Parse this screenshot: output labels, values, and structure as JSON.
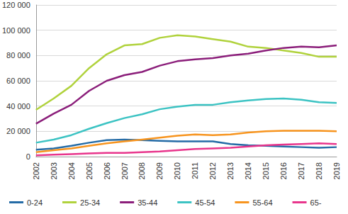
{
  "chart_data": {
    "type": "line",
    "categories": [
      "2002",
      "2003",
      "2004",
      "2005",
      "2006",
      "2007",
      "2008",
      "2009",
      "2010",
      "2011",
      "2012",
      "2013",
      "2014",
      "2015",
      "2016",
      "2017",
      "2018",
      "2019"
    ],
    "series": [
      {
        "name": "0-24",
        "color": "#246ba6",
        "values": [
          5500,
          6500,
          8500,
          11000,
          13000,
          13500,
          13000,
          12500,
          12000,
          12000,
          12000,
          10000,
          9000,
          8500,
          8000,
          7500,
          7000,
          7500
        ]
      },
      {
        "name": "25-34",
        "color": "#b0d23c",
        "values": [
          37000,
          46000,
          56000,
          70000,
          81000,
          88000,
          89000,
          94000,
          96000,
          95000,
          93000,
          91000,
          87000,
          86000,
          84000,
          82000,
          79000,
          79000
        ]
      },
      {
        "name": "35-44",
        "color": "#8b1e7a",
        "values": [
          26000,
          34000,
          41000,
          52000,
          60000,
          64500,
          67000,
          72000,
          75500,
          77000,
          78000,
          80000,
          81500,
          84000,
          86000,
          87000,
          86500,
          88000
        ]
      },
      {
        "name": "45-54",
        "color": "#3cc3c3",
        "values": [
          11000,
          13500,
          17000,
          22000,
          26500,
          30500,
          33500,
          37500,
          39500,
          41000,
          41000,
          43000,
          44500,
          45500,
          46000,
          45000,
          43000,
          42500
        ]
      },
      {
        "name": "55-64",
        "color": "#f7941e",
        "values": [
          3500,
          5000,
          6500,
          8500,
          10500,
          12000,
          13500,
          15000,
          16500,
          17500,
          17000,
          17500,
          19000,
          20000,
          20500,
          20500,
          20500,
          20000
        ]
      },
      {
        "name": "65-",
        "color": "#e8358c",
        "values": [
          1000,
          1500,
          2000,
          2500,
          3000,
          3000,
          3500,
          4000,
          5000,
          6000,
          6500,
          7000,
          8000,
          9000,
          9500,
          10000,
          10500,
          10000
        ]
      }
    ],
    "ylim": [
      0,
      120000
    ],
    "yticks": [
      0,
      {
        "value": 20000,
        "label": "20 000"
      },
      {
        "value": 40000,
        "label": "40 000"
      },
      {
        "value": 60000,
        "label": "60 000"
      },
      {
        "value": 80000,
        "label": "80 000"
      },
      {
        "value": 100000,
        "label": "100 000"
      },
      {
        "value": 120000,
        "label": "120 000"
      }
    ],
    "grid": true,
    "legend": "bottom"
  }
}
